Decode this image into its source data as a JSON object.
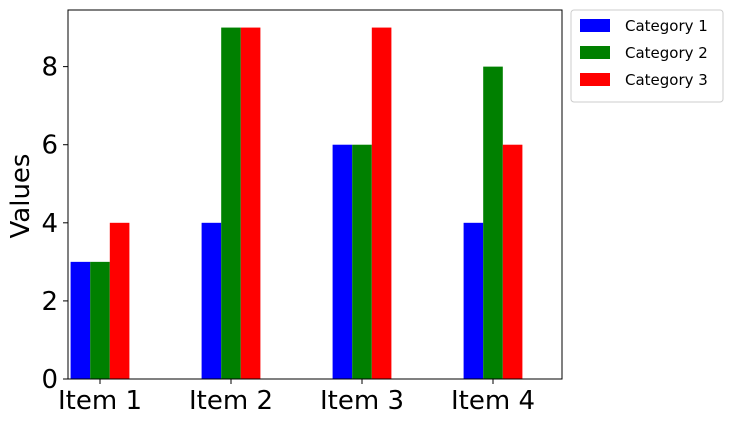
{
  "chart_data": {
    "type": "bar",
    "categories": [
      "Item 1",
      "Item 2",
      "Item 3",
      "Item 4"
    ],
    "series": [
      {
        "name": "Category 1",
        "color": "#0000ff",
        "values": [
          3,
          4,
          6,
          4
        ]
      },
      {
        "name": "Category 2",
        "color": "#008000",
        "values": [
          3,
          9,
          6,
          8
        ]
      },
      {
        "name": "Category 3",
        "color": "#ff0000",
        "values": [
          4,
          9,
          9,
          6
        ]
      }
    ],
    "xlabel": "",
    "ylabel": "Values",
    "ylim": [
      0,
      9.45
    ],
    "yticks": [
      "0",
      "2",
      "4",
      "6",
      "8"
    ],
    "legend_position": "outside-top-right",
    "grid": false
  }
}
